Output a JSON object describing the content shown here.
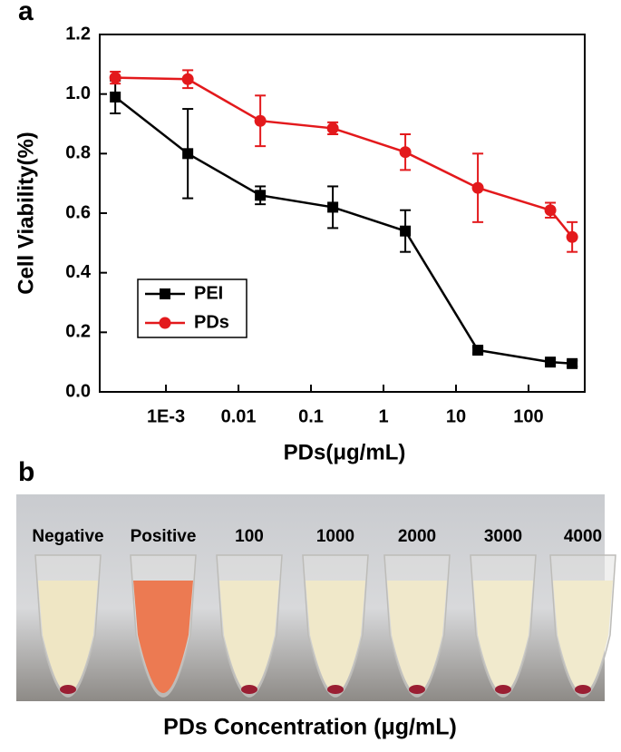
{
  "panel_a_label": "a",
  "chart_data": {
    "type": "line",
    "xscale": "log",
    "x": [
      0.0002,
      0.002,
      0.02,
      0.2,
      2,
      20,
      200,
      400
    ],
    "xlabel": "PDs(μg/mL)",
    "ylabel": "Cell Viability(%)",
    "xlim": [
      0.000122,
      596
    ],
    "xticks": [
      {
        "value": 0.001,
        "label": "1E-3"
      },
      0.01,
      0.1,
      1,
      10,
      100
    ],
    "ylim": [
      0,
      1.2
    ],
    "yticks": [
      {
        "value": 0,
        "label": "0.0"
      },
      0.2,
      0.4,
      0.6,
      0.8,
      {
        "value": 1,
        "label": "1.0"
      },
      1.2
    ],
    "legend": "lower left",
    "series": [
      {
        "name": "PEI",
        "color": "#000000",
        "marker": "square",
        "values": [
          0.99,
          0.8,
          0.66,
          0.62,
          0.54,
          0.14,
          0.1,
          0.095
        ],
        "errors": [
          0.055,
          0.15,
          0.03,
          0.07,
          0.07,
          0.01,
          0.01,
          0.01
        ]
      },
      {
        "name": "PDs",
        "color": "#e3191c",
        "marker": "circle",
        "values": [
          1.055,
          1.05,
          0.91,
          0.885,
          0.805,
          0.685,
          0.61,
          0.52
        ],
        "errors": [
          0.02,
          0.03,
          0.085,
          0.02,
          0.06,
          0.115,
          0.025,
          0.05
        ]
      }
    ]
  },
  "panel_b": {
    "label": "b",
    "tubes": [
      {
        "label": "Negative",
        "color": "#efe6c4",
        "pellet": true
      },
      {
        "label": "Positive",
        "color": "#ec7a52",
        "pellet": false
      },
      {
        "label": "100",
        "color": "#f0e8c9",
        "pellet": true
      },
      {
        "label": "1000",
        "color": "#f0e8c9",
        "pellet": true
      },
      {
        "label": "2000",
        "color": "#f0e8cb",
        "pellet": true
      },
      {
        "label": "3000",
        "color": "#f1eacd",
        "pellet": true
      },
      {
        "label": "4000",
        "color": "#f1eacd",
        "pellet": true
      }
    ],
    "caption": "PDs Concentration (μg/mL)"
  }
}
